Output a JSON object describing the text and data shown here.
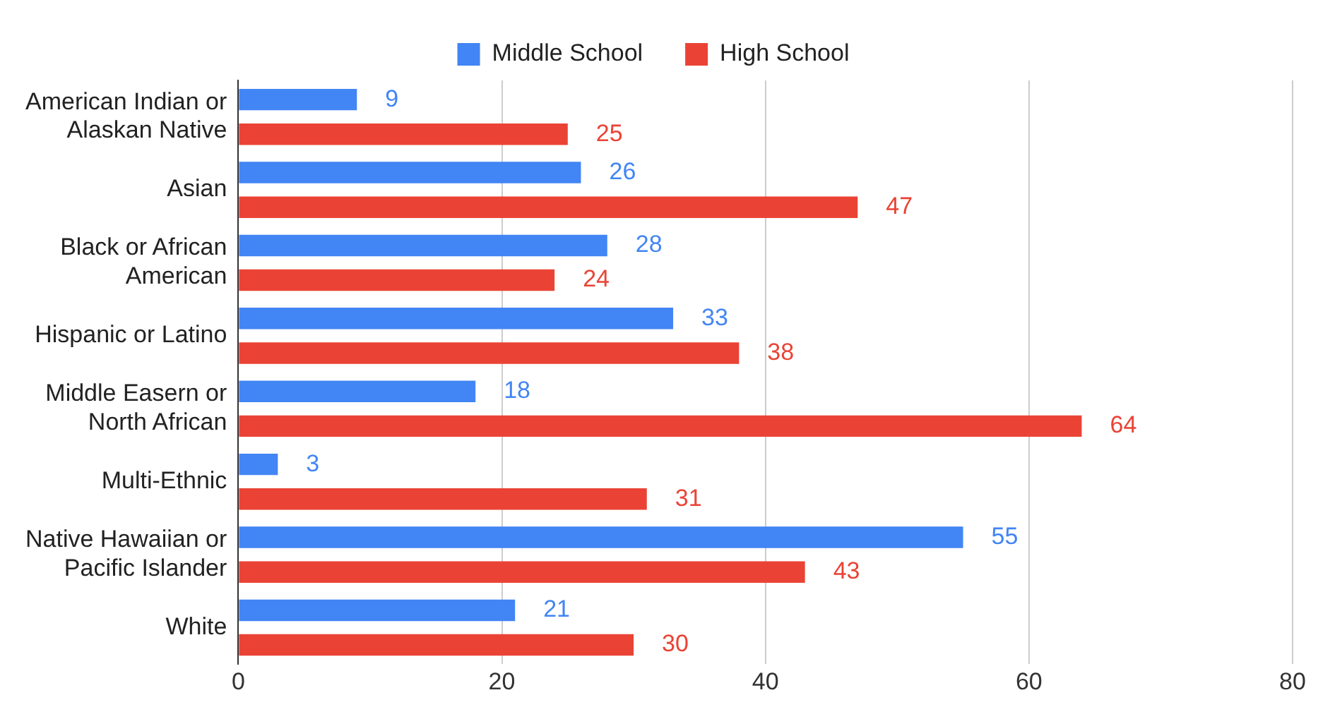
{
  "chart_data": {
    "type": "bar",
    "orientation": "horizontal",
    "categories": [
      "American Indian or Alaskan Native",
      "Asian",
      "Black or African American",
      "Hispanic or Latino",
      "Middle Easern or North African",
      "Multi-Ethnic",
      "Native Hawaiian or Pacific Islander",
      "White"
    ],
    "series": [
      {
        "name": "Middle School",
        "color": "#4285f4",
        "values": [
          9,
          26,
          28,
          33,
          18,
          3,
          55,
          21
        ]
      },
      {
        "name": "High School",
        "color": "#ea4335",
        "values": [
          25,
          47,
          24,
          38,
          64,
          31,
          43,
          30
        ]
      }
    ],
    "xlim": [
      0,
      80
    ],
    "xticks": [
      0,
      20,
      40,
      60,
      80
    ],
    "grid": "x",
    "legend": "top",
    "data_labels": true
  }
}
